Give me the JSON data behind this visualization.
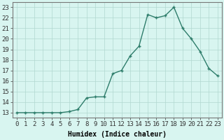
{
  "x": [
    0,
    1,
    2,
    3,
    4,
    5,
    6,
    7,
    8,
    9,
    10,
    11,
    12,
    13,
    14,
    15,
    16,
    17,
    18,
    19,
    20,
    21,
    22,
    23
  ],
  "y": [
    13.0,
    13.0,
    13.0,
    13.0,
    13.0,
    13.0,
    13.1,
    13.3,
    14.4,
    14.5,
    14.5,
    16.7,
    17.0,
    18.4,
    19.3,
    22.3,
    22.0,
    22.2,
    23.0,
    21.0,
    20.0,
    18.8,
    17.2,
    16.5
  ],
  "line_color": "#2e7d6b",
  "marker": "+",
  "marker_size": 3,
  "marker_linewidth": 1.0,
  "linewidth": 1.0,
  "background_color": "#d8f5f0",
  "grid_color": "#b0d8d0",
  "xlabel": "Humidex (Indice chaleur)",
  "yticks": [
    13,
    14,
    15,
    16,
    17,
    18,
    19,
    20,
    21,
    22,
    23
  ],
  "xlim": [
    -0.5,
    23.5
  ],
  "ylim": [
    12.5,
    23.5
  ],
  "xlabel_fontsize": 7,
  "tick_fontsize": 6.5,
  "tick_font": "monospace"
}
